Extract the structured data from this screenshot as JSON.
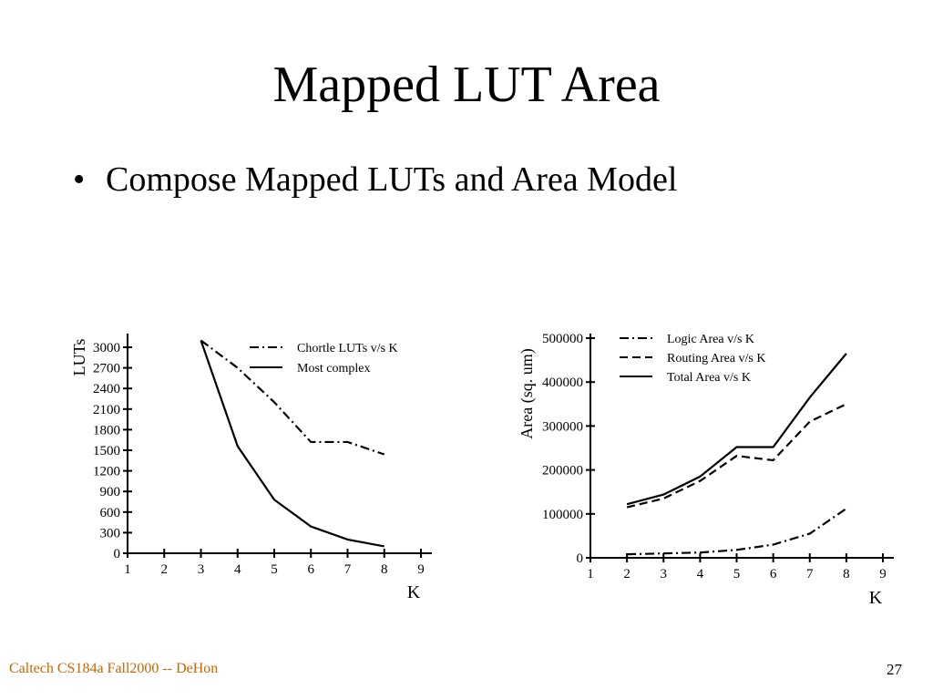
{
  "slide": {
    "title": "Mapped LUT Area",
    "bullet": "Compose Mapped LUTs and Area Model",
    "bullet_marker": "•",
    "footer": "Caltech CS184a Fall2000 -- DeHon",
    "page_number": "27"
  },
  "chart_data": [
    {
      "type": "line",
      "title": "",
      "xlabel": "K",
      "ylabel": "LUTs",
      "xlim": [
        1,
        9
      ],
      "ylim": [
        0,
        3000
      ],
      "xticks": [
        "1",
        "2",
        "3",
        "4",
        "5",
        "6",
        "7",
        "8",
        "9"
      ],
      "yticks": [
        "0",
        "300",
        "600",
        "900",
        "1200",
        "1500",
        "1800",
        "2100",
        "2400",
        "2700",
        "3000"
      ],
      "legend_position": "top-right",
      "series": [
        {
          "name": "Chortle LUTs v/s K",
          "style": "dashdot",
          "x": [
            3,
            4,
            5,
            6,
            7,
            8
          ],
          "y": [
            3100,
            2700,
            2200,
            1620,
            1620,
            1440
          ]
        },
        {
          "name": "Most complex",
          "style": "solid",
          "x": [
            3,
            4,
            5,
            6,
            7,
            8
          ],
          "y": [
            3100,
            1560,
            780,
            390,
            200,
            100
          ]
        }
      ]
    },
    {
      "type": "line",
      "title": "",
      "xlabel": "K",
      "ylabel": "Area (sq. um)",
      "xlim": [
        1,
        9
      ],
      "ylim": [
        0,
        500000
      ],
      "xticks": [
        "1",
        "2",
        "3",
        "4",
        "5",
        "6",
        "7",
        "8",
        "9"
      ],
      "yticks": [
        "0",
        "100000",
        "200000",
        "300000",
        "400000",
        "500000"
      ],
      "legend_position": "top-left",
      "series": [
        {
          "name": "Logic Area v/s K",
          "style": "dashdot",
          "x": [
            2,
            3,
            4,
            5,
            6,
            7,
            8
          ],
          "y": [
            8000,
            10000,
            12000,
            18000,
            30000,
            55000,
            112000
          ]
        },
        {
          "name": "Routing Area v/s K",
          "style": "dashed",
          "x": [
            2,
            3,
            4,
            5,
            6,
            7,
            8
          ],
          "y": [
            115000,
            135000,
            175000,
            232000,
            222000,
            310000,
            350000
          ]
        },
        {
          "name": "Total Area v/s K",
          "style": "solid",
          "x": [
            2,
            3,
            4,
            5,
            6,
            7,
            8
          ],
          "y": [
            122000,
            144000,
            185000,
            252000,
            252000,
            365000,
            465000
          ]
        }
      ]
    }
  ]
}
